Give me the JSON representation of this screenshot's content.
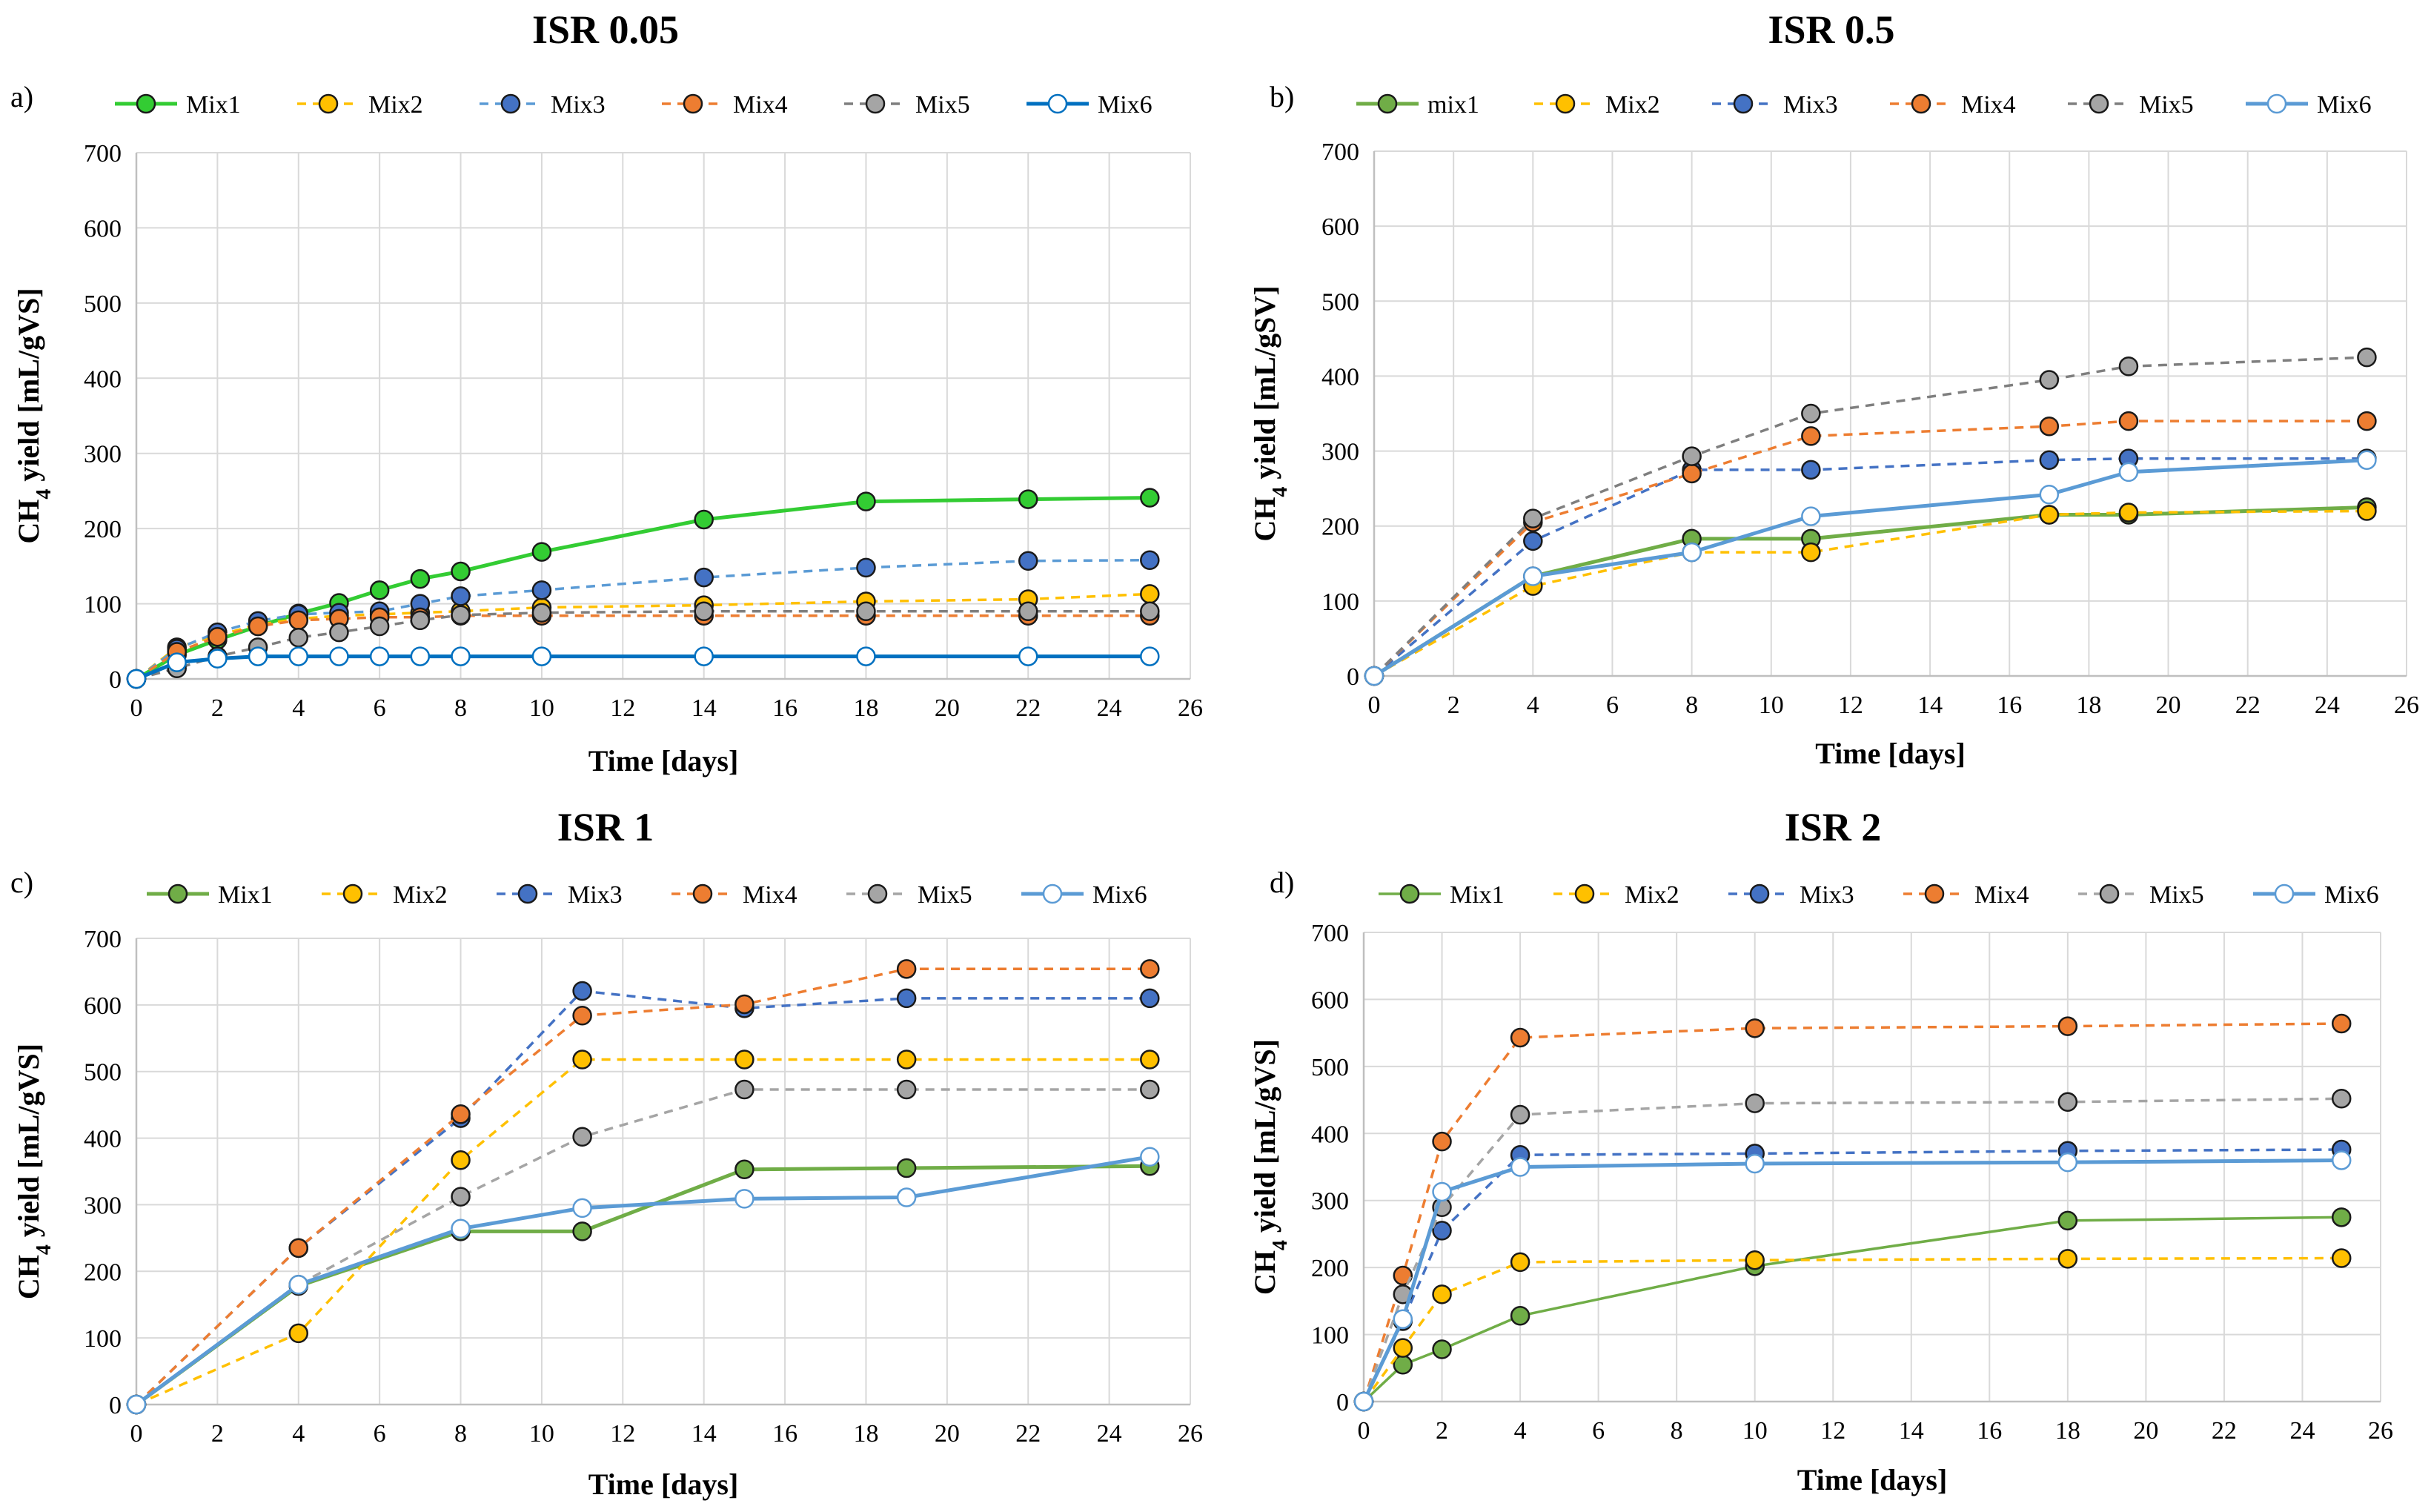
{
  "figure": {
    "panel_count": 4
  },
  "chart_data": [
    {
      "panel": "a)",
      "title": "ISR 0.05",
      "type": "line",
      "xlabel": "Time [days]",
      "ylabel": "CH4 yield [mL/gVS]",
      "ylabel_main": "CH",
      "ylabel_sub": "4",
      "ylabel_rest": " yield [mL/gVS]",
      "xlim": [
        0,
        26
      ],
      "ylim": [
        0,
        700
      ],
      "xticks": [
        0,
        2,
        4,
        6,
        8,
        10,
        12,
        14,
        16,
        18,
        20,
        22,
        24,
        26
      ],
      "yticks": [
        0,
        100,
        200,
        300,
        400,
        500,
        600,
        700
      ],
      "grid": true,
      "legend_position": "top",
      "series": [
        {
          "name": "Mix1",
          "color": "#33CC33",
          "fill": "#33CC33",
          "dash": "solid",
          "width": 5,
          "x": [
            0,
            1,
            2,
            3,
            4,
            5,
            6,
            7,
            8,
            10,
            14,
            18,
            22,
            25
          ],
          "y": [
            0,
            32,
            52,
            70,
            87,
            101,
            118,
            133,
            143,
            169,
            212,
            236,
            239,
            241
          ]
        },
        {
          "name": "Mix2",
          "color": "#FFC000",
          "fill": "#FFC000",
          "dash": "dashed",
          "width": 3.5,
          "x": [
            0,
            1,
            2,
            3,
            4,
            5,
            6,
            7,
            8,
            10,
            14,
            18,
            22,
            25
          ],
          "y": [
            0,
            42,
            58,
            72,
            80,
            84,
            86,
            88,
            90,
            95,
            98,
            103,
            106,
            113
          ]
        },
        {
          "name": "Mix3",
          "color": "#5B9BD5",
          "fill": "#4472C4",
          "dash": "dashed",
          "width": 3.5,
          "x": [
            0,
            1,
            2,
            3,
            4,
            5,
            6,
            7,
            8,
            10,
            14,
            18,
            22,
            25
          ],
          "y": [
            0,
            40,
            62,
            77,
            86,
            88,
            90,
            100,
            110,
            118,
            135,
            148,
            157,
            158
          ]
        },
        {
          "name": "Mix4",
          "color": "#ED7D31",
          "fill": "#ED7D31",
          "dash": "dashed",
          "width": 3.5,
          "x": [
            0,
            1,
            2,
            3,
            4,
            5,
            6,
            7,
            8,
            10,
            14,
            18,
            22,
            25
          ],
          "y": [
            0,
            36,
            56,
            70,
            78,
            80,
            82,
            82,
            84,
            84,
            84,
            84,
            84,
            84
          ]
        },
        {
          "name": "Mix5",
          "color": "#7F7F7F",
          "fill": "#A5A5A5",
          "dash": "dashed",
          "width": 3.5,
          "x": [
            0,
            1,
            2,
            3,
            4,
            5,
            6,
            7,
            8,
            10,
            14,
            18,
            22,
            25
          ],
          "y": [
            0,
            14,
            30,
            42,
            55,
            62,
            70,
            78,
            85,
            88,
            90,
            90,
            90,
            90
          ]
        },
        {
          "name": "Mix6",
          "color": "#0070C0",
          "fill": "#FFFFFF",
          "dash": "solid",
          "width": 5,
          "x": [
            0,
            1,
            2,
            3,
            4,
            5,
            6,
            7,
            8,
            10,
            14,
            18,
            22,
            25
          ],
          "y": [
            0,
            22,
            27,
            30,
            30,
            30,
            30,
            30,
            30,
            30,
            30,
            30,
            30,
            30
          ]
        }
      ]
    },
    {
      "panel": "b)",
      "title": "ISR 0.5",
      "type": "line",
      "xlabel": "Time [days]",
      "ylabel": "CH4 yield [mL/gSV]",
      "ylabel_main": "CH",
      "ylabel_sub": "4",
      "ylabel_rest": " yield [mL/gSV]",
      "xlim": [
        0,
        26
      ],
      "ylim": [
        0,
        700
      ],
      "xticks": [
        0,
        2,
        4,
        6,
        8,
        10,
        12,
        14,
        16,
        18,
        20,
        22,
        24,
        26
      ],
      "yticks": [
        0,
        100,
        200,
        300,
        400,
        500,
        600,
        700
      ],
      "grid": true,
      "legend_position": "top",
      "series": [
        {
          "name": "mix1",
          "color": "#70AD47",
          "fill": "#70AD47",
          "dash": "solid",
          "width": 5,
          "x": [
            0,
            4,
            8,
            11,
            17,
            19,
            25
          ],
          "y": [
            0,
            133,
            183,
            183,
            215,
            215,
            225
          ]
        },
        {
          "name": "Mix2",
          "color": "#FFC000",
          "fill": "#FFC000",
          "dash": "dashed",
          "width": 3.5,
          "x": [
            0,
            4,
            8,
            11,
            17,
            19,
            25
          ],
          "y": [
            0,
            120,
            165,
            165,
            215,
            218,
            220
          ]
        },
        {
          "name": "Mix3",
          "color": "#4472C4",
          "fill": "#4472C4",
          "dash": "dashed",
          "width": 3.5,
          "x": [
            0,
            4,
            8,
            11,
            17,
            19,
            25
          ],
          "y": [
            0,
            180,
            275,
            275,
            288,
            290,
            290
          ]
        },
        {
          "name": "Mix4",
          "color": "#ED7D31",
          "fill": "#ED7D31",
          "dash": "dashed",
          "width": 3.5,
          "x": [
            0,
            4,
            8,
            11,
            17,
            19,
            25
          ],
          "y": [
            0,
            205,
            270,
            320,
            333,
            340,
            340
          ]
        },
        {
          "name": "Mix5",
          "color": "#7F7F7F",
          "fill": "#A5A5A5",
          "dash": "dashed",
          "width": 3.5,
          "x": [
            0,
            4,
            8,
            11,
            17,
            19,
            25
          ],
          "y": [
            0,
            210,
            293,
            350,
            395,
            413,
            425
          ]
        },
        {
          "name": "Mix6",
          "color": "#5B9BD5",
          "fill": "#FFFFFF",
          "dash": "solid",
          "width": 5,
          "x": [
            0,
            4,
            8,
            11,
            17,
            19,
            25
          ],
          "y": [
            0,
            133,
            165,
            213,
            242,
            272,
            288
          ]
        }
      ]
    },
    {
      "panel": "c)",
      "title": "ISR 1",
      "type": "line",
      "xlabel": "Time [days]",
      "ylabel": "CH4 yield [mL/gVS]",
      "ylabel_main": "CH",
      "ylabel_sub": "4",
      "ylabel_rest": " yield [mL/gVS]",
      "xlim": [
        0,
        26
      ],
      "ylim": [
        0,
        700
      ],
      "xticks": [
        0,
        2,
        4,
        6,
        8,
        10,
        12,
        14,
        16,
        18,
        20,
        22,
        24,
        26
      ],
      "yticks": [
        0,
        100,
        200,
        300,
        400,
        500,
        600,
        700
      ],
      "grid": true,
      "legend_position": "top",
      "series": [
        {
          "name": "Mix1",
          "color": "#70AD47",
          "fill": "#70AD47",
          "dash": "solid",
          "width": 5,
          "x": [
            0,
            4,
            8,
            11,
            15,
            19,
            25
          ],
          "y": [
            0,
            178,
            260,
            260,
            353,
            355,
            358
          ]
        },
        {
          "name": "Mix2",
          "color": "#FFC000",
          "fill": "#FFC000",
          "dash": "dashed",
          "width": 3.5,
          "x": [
            0,
            4,
            8,
            11,
            15,
            19,
            25
          ],
          "y": [
            0,
            107,
            367,
            518,
            518,
            518,
            518
          ]
        },
        {
          "name": "Mix3",
          "color": "#4472C4",
          "fill": "#4472C4",
          "dash": "dashed",
          "width": 3.5,
          "x": [
            0,
            4,
            8,
            11,
            15,
            19,
            25
          ],
          "y": [
            0,
            235,
            430,
            621,
            595,
            610,
            610
          ]
        },
        {
          "name": "Mix4",
          "color": "#ED7D31",
          "fill": "#ED7D31",
          "dash": "dashed",
          "width": 3.5,
          "x": [
            0,
            4,
            8,
            11,
            15,
            19,
            25
          ],
          "y": [
            0,
            235,
            436,
            584,
            601,
            654,
            654
          ]
        },
        {
          "name": "Mix5",
          "color": "#A5A5A5",
          "fill": "#A5A5A5",
          "dash": "dashed",
          "width": 3.5,
          "x": [
            0,
            4,
            8,
            11,
            15,
            19,
            25
          ],
          "y": [
            0,
            180,
            312,
            402,
            473,
            473,
            473
          ]
        },
        {
          "name": "Mix6",
          "color": "#5B9BD5",
          "fill": "#FFFFFF",
          "dash": "solid",
          "width": 5,
          "x": [
            0,
            4,
            8,
            11,
            15,
            19,
            25
          ],
          "y": [
            0,
            180,
            264,
            295,
            309,
            311,
            372
          ]
        }
      ]
    },
    {
      "panel": "d)",
      "title": "ISR 2",
      "type": "line",
      "xlabel": "Time [days]",
      "ylabel": "CH4 yield [mL/gVS]",
      "ylabel_main": "CH",
      "ylabel_sub": "4",
      "ylabel_rest": " yield [mL/gVS]",
      "xlim": [
        0,
        26
      ],
      "ylim": [
        0,
        700
      ],
      "xticks": [
        0,
        2,
        4,
        6,
        8,
        10,
        12,
        14,
        16,
        18,
        20,
        22,
        24,
        26
      ],
      "yticks": [
        0,
        100,
        200,
        300,
        400,
        500,
        600,
        700
      ],
      "grid": true,
      "legend_position": "top",
      "series": [
        {
          "name": "Mix1",
          "color": "#70AD47",
          "fill": "#70AD47",
          "dash": "solid",
          "width": 3.5,
          "x": [
            0,
            1,
            2,
            4,
            10,
            18,
            25
          ],
          "y": [
            0,
            55,
            78,
            128,
            202,
            270,
            275
          ]
        },
        {
          "name": "Mix2",
          "color": "#FFC000",
          "fill": "#FFC000",
          "dash": "dashed",
          "width": 3.5,
          "x": [
            0,
            1,
            2,
            4,
            10,
            18,
            25
          ],
          "y": [
            0,
            80,
            160,
            208,
            211,
            213,
            214
          ]
        },
        {
          "name": "Mix3",
          "color": "#4472C4",
          "fill": "#4472C4",
          "dash": "dashed",
          "width": 3.5,
          "x": [
            0,
            1,
            2,
            4,
            10,
            18,
            25
          ],
          "y": [
            0,
            120,
            255,
            368,
            370,
            374,
            376
          ]
        },
        {
          "name": "Mix4",
          "color": "#ED7D31",
          "fill": "#ED7D31",
          "dash": "dashed",
          "width": 3.5,
          "x": [
            0,
            1,
            2,
            4,
            10,
            18,
            25
          ],
          "y": [
            0,
            188,
            388,
            543,
            557,
            560,
            564
          ]
        },
        {
          "name": "Mix5",
          "color": "#A5A5A5",
          "fill": "#A5A5A5",
          "dash": "dashed",
          "width": 3.5,
          "x": [
            0,
            1,
            2,
            4,
            10,
            18,
            25
          ],
          "y": [
            0,
            160,
            290,
            428,
            445,
            447,
            452
          ]
        },
        {
          "name": "Mix6",
          "color": "#5B9BD5",
          "fill": "#FFFFFF",
          "dash": "solid",
          "width": 5,
          "x": [
            0,
            1,
            2,
            4,
            10,
            18,
            25
          ],
          "y": [
            0,
            123,
            313,
            350,
            355,
            357,
            360
          ]
        }
      ]
    }
  ]
}
